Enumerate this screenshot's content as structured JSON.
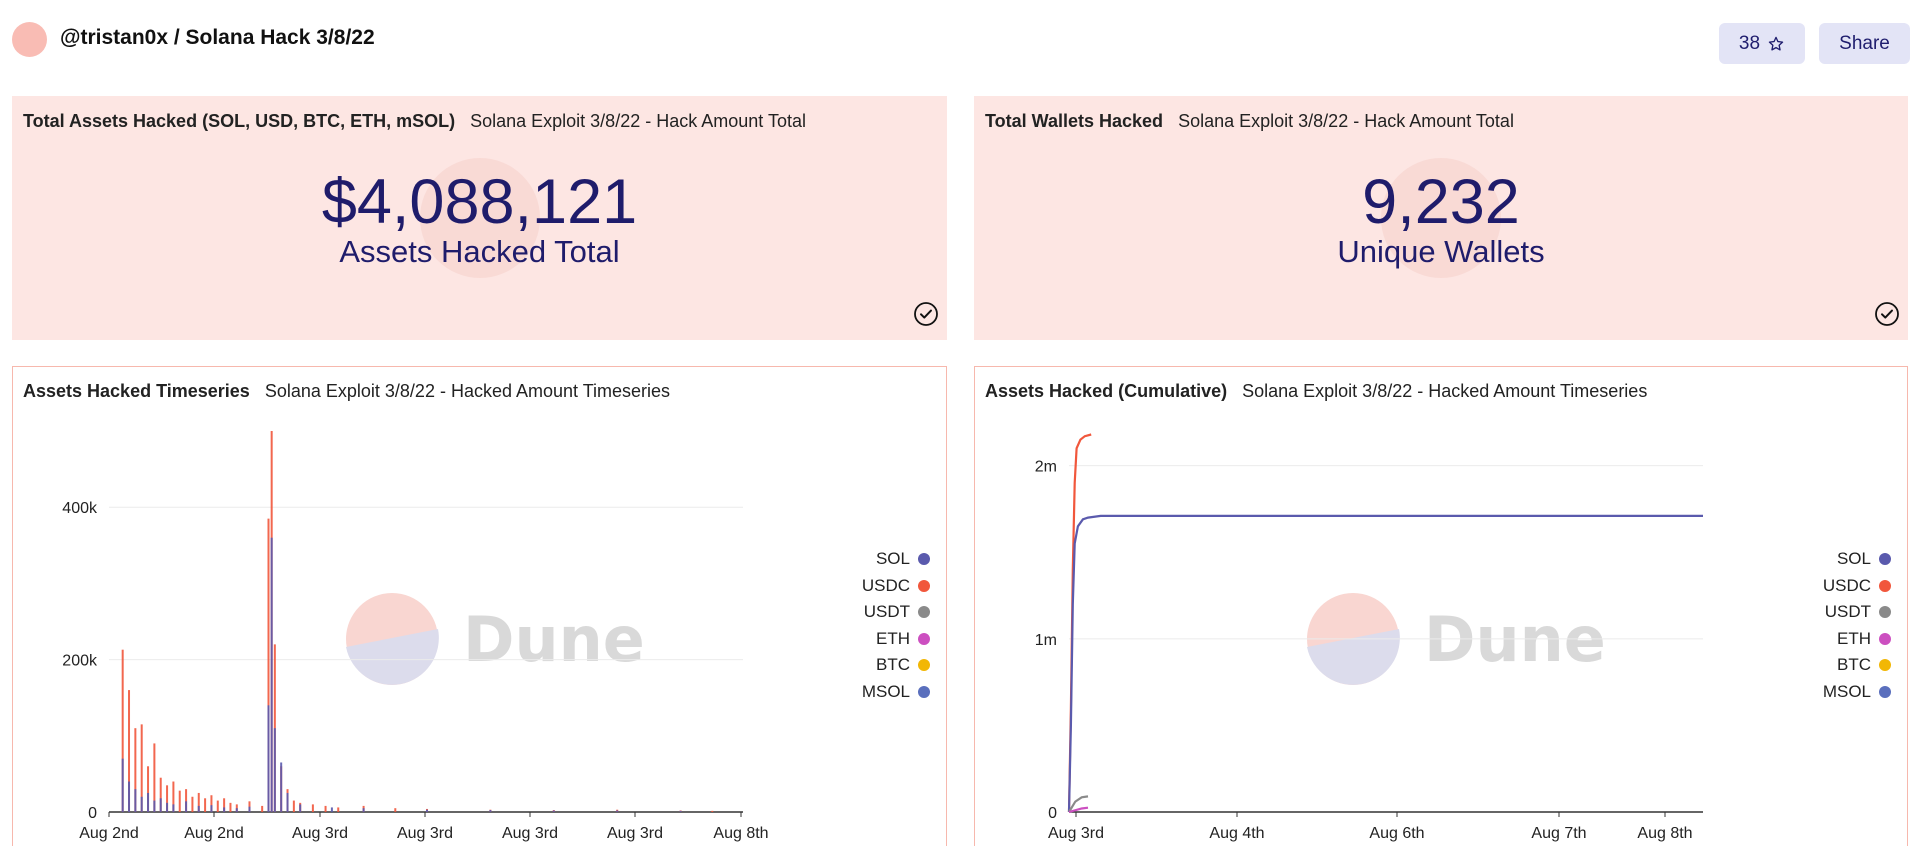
{
  "header": {
    "breadcrumb": "@tristan0x / Solana Hack 3/8/22",
    "star_count": "38",
    "share_label": "Share"
  },
  "colors": {
    "counter_bg": "#fde6e3",
    "counter_text": "#1f1c6b",
    "button_bg": "#e3e4f6",
    "chart_border": "#f7b8ad"
  },
  "icons": {
    "star": "star-icon",
    "check": "check-circle-icon"
  },
  "counters": [
    {
      "title": "Total Assets Hacked (SOL, USD, BTC, ETH, mSOL)",
      "query": "Solana Exploit 3/8/22 - Hack Amount Total",
      "value": "$4,088,121",
      "label": "Assets Hacked Total"
    },
    {
      "title": "Total Wallets Hacked",
      "query": "Solana Exploit 3/8/22 - Hack Amount Total",
      "value": "9,232",
      "label": "Unique Wallets"
    }
  ],
  "charts": [
    {
      "title": "Assets Hacked Timeseries",
      "query": "Solana Exploit 3/8/22 - Hacked Amount Timeseries",
      "watermark": "Dune"
    },
    {
      "title": "Assets Hacked (Cumulative)",
      "query": "Solana Exploit 3/8/22 - Hacked Amount Timeseries",
      "watermark": "Dune"
    }
  ],
  "chart_data": [
    {
      "type": "bar",
      "x_tick_labels": [
        "Aug 2nd",
        "Aug 2nd",
        "Aug 3rd",
        "Aug 3rd",
        "Aug 3rd",
        "Aug 3rd",
        "Aug 8th"
      ],
      "y_tick_labels": [
        "0",
        "200k",
        "400k"
      ],
      "ylim": [
        0,
        500000
      ],
      "grid": true,
      "legend_position": "right",
      "legend": [
        {
          "name": "SOL",
          "color": "#5a5aad"
        },
        {
          "name": "USDC",
          "color": "#f1573c"
        },
        {
          "name": "USDT",
          "color": "#8a8a8a"
        },
        {
          "name": "ETH",
          "color": "#cc4fc0"
        },
        {
          "name": "BTC",
          "color": "#f2b705"
        },
        {
          "name": "MSOL",
          "color": "#5a6fbd"
        }
      ],
      "series": [
        {
          "name": "USDC",
          "color": "#f1573c",
          "points": [
            [
              0.02,
              213000
            ],
            [
              0.03,
              160000
            ],
            [
              0.04,
              110000
            ],
            [
              0.05,
              115000
            ],
            [
              0.06,
              60000
            ],
            [
              0.07,
              90000
            ],
            [
              0.08,
              45000
            ],
            [
              0.09,
              35000
            ],
            [
              0.1,
              40000
            ],
            [
              0.11,
              28000
            ],
            [
              0.12,
              30000
            ],
            [
              0.13,
              20000
            ],
            [
              0.14,
              25000
            ],
            [
              0.15,
              18000
            ],
            [
              0.16,
              22000
            ],
            [
              0.17,
              15000
            ],
            [
              0.18,
              18000
            ],
            [
              0.19,
              12000
            ],
            [
              0.2,
              10000
            ],
            [
              0.22,
              14000
            ],
            [
              0.24,
              8000
            ],
            [
              0.25,
              385000
            ],
            [
              0.255,
              500000
            ],
            [
              0.26,
              220000
            ],
            [
              0.27,
              60000
            ],
            [
              0.28,
              30000
            ],
            [
              0.29,
              15000
            ],
            [
              0.3,
              12000
            ],
            [
              0.32,
              10000
            ],
            [
              0.34,
              8000
            ],
            [
              0.36,
              6000
            ],
            [
              0.4,
              8000
            ],
            [
              0.45,
              5000
            ],
            [
              0.5,
              4000
            ],
            [
              0.6,
              3000
            ],
            [
              0.7,
              2500
            ],
            [
              0.8,
              3000
            ],
            [
              0.9,
              2000
            ],
            [
              0.95,
              1500
            ]
          ]
        },
        {
          "name": "SOL",
          "color": "#5a5aad",
          "points": [
            [
              0.02,
              70000
            ],
            [
              0.03,
              40000
            ],
            [
              0.04,
              30000
            ],
            [
              0.05,
              20000
            ],
            [
              0.06,
              25000
            ],
            [
              0.07,
              15000
            ],
            [
              0.08,
              18000
            ],
            [
              0.09,
              12000
            ],
            [
              0.1,
              10000
            ],
            [
              0.12,
              14000
            ],
            [
              0.14,
              8000
            ],
            [
              0.16,
              9000
            ],
            [
              0.18,
              6000
            ],
            [
              0.2,
              5000
            ],
            [
              0.22,
              7000
            ],
            [
              0.25,
              140000
            ],
            [
              0.255,
              360000
            ],
            [
              0.26,
              110000
            ],
            [
              0.27,
              65000
            ],
            [
              0.28,
              25000
            ],
            [
              0.3,
              10000
            ],
            [
              0.35,
              6000
            ],
            [
              0.4,
              5000
            ],
            [
              0.5,
              3000
            ],
            [
              0.6,
              2500
            ],
            [
              0.7,
              2000
            ],
            [
              0.8,
              2000
            ],
            [
              0.9,
              1500
            ]
          ]
        }
      ]
    },
    {
      "type": "line",
      "x_tick_labels": [
        "Aug 3rd",
        "Aug 4th",
        "Aug 6th",
        "Aug 7th",
        "Aug 8th"
      ],
      "y_tick_labels": [
        "0",
        "1m",
        "2m"
      ],
      "ylim": [
        0,
        2200000
      ],
      "grid": true,
      "legend_position": "right",
      "legend": [
        {
          "name": "SOL",
          "color": "#5a5aad"
        },
        {
          "name": "USDC",
          "color": "#f1573c"
        },
        {
          "name": "USDT",
          "color": "#8a8a8a"
        },
        {
          "name": "ETH",
          "color": "#cc4fc0"
        },
        {
          "name": "BTC",
          "color": "#f2b705"
        },
        {
          "name": "MSOL",
          "color": "#5a6fbd"
        }
      ],
      "series": [
        {
          "name": "USDC",
          "color": "#f1573c",
          "points": [
            [
              0.0,
              0
            ],
            [
              0.003,
              600000
            ],
            [
              0.006,
              1400000
            ],
            [
              0.009,
              1900000
            ],
            [
              0.012,
              2100000
            ],
            [
              0.018,
              2150000
            ],
            [
              0.025,
              2170000
            ],
            [
              0.035,
              2180000
            ]
          ]
        },
        {
          "name": "SOL",
          "color": "#5a5aad",
          "points": [
            [
              0.0,
              0
            ],
            [
              0.003,
              500000
            ],
            [
              0.006,
              1200000
            ],
            [
              0.009,
              1550000
            ],
            [
              0.014,
              1650000
            ],
            [
              0.022,
              1690000
            ],
            [
              0.03,
              1700000
            ],
            [
              0.05,
              1710000
            ],
            [
              1.0,
              1710000
            ]
          ]
        },
        {
          "name": "USDT",
          "color": "#8a8a8a",
          "points": [
            [
              0.0,
              0
            ],
            [
              0.01,
              60000
            ],
            [
              0.02,
              85000
            ],
            [
              0.03,
              90000
            ]
          ]
        },
        {
          "name": "ETH",
          "color": "#cc4fc0",
          "points": [
            [
              0.0,
              0
            ],
            [
              0.02,
              20000
            ],
            [
              0.03,
              25000
            ]
          ]
        }
      ]
    }
  ]
}
